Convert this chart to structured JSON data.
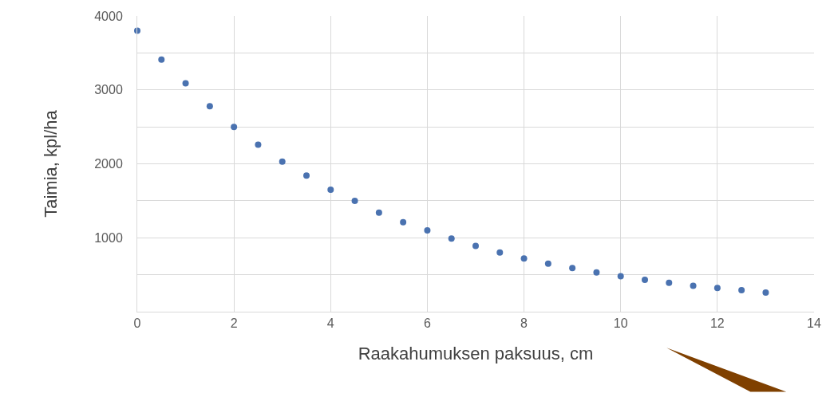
{
  "chart_data": {
    "type": "scatter",
    "xlabel": "Raakahumuksen paksuus, cm",
    "ylabel": "Taimia, kpl/ha",
    "x": [
      0,
      0.5,
      1,
      1.5,
      2,
      2.5,
      3,
      3.5,
      4,
      4.5,
      5,
      5.5,
      6,
      6.5,
      7,
      7.5,
      8,
      8.5,
      9,
      9.5,
      10,
      10.5,
      11,
      11.5,
      12,
      12.5,
      13
    ],
    "series": [
      {
        "color": "#4a72b0",
        "values": [
          3800,
          3410,
          3090,
          2780,
          2500,
          2260,
          2030,
          1840,
          1650,
          1500,
          1340,
          1210,
          1100,
          990,
          890,
          800,
          720,
          650,
          590,
          530,
          480,
          430,
          390,
          350,
          320,
          290,
          260
        ]
      }
    ],
    "xlim": [
      0,
      14
    ],
    "xticks": [
      0,
      2,
      4,
      6,
      8,
      10,
      12,
      14
    ],
    "ylim": [
      0,
      4000
    ],
    "yticks": [
      {
        "value": 500,
        "label": null
      },
      1000,
      {
        "value": 1500,
        "label": null
      },
      2000,
      {
        "value": 2500,
        "label": null
      },
      3000,
      {
        "value": 3500,
        "label": null
      },
      4000
    ],
    "grid": true,
    "marker": "circle"
  }
}
